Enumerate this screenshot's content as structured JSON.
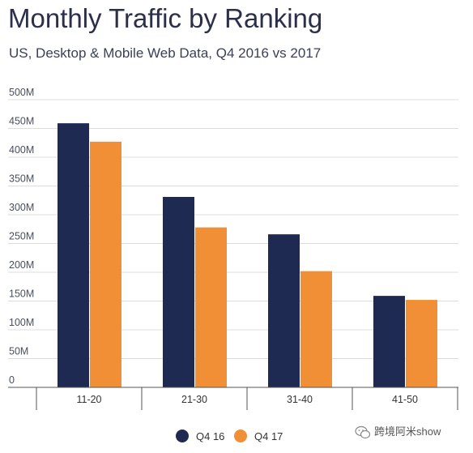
{
  "header": {
    "title": "Monthly Traffic by Ranking",
    "subtitle": "US, Desktop & Mobile Web Data, Q4 2016 vs 2017"
  },
  "chart_data": {
    "type": "bar",
    "title": "Monthly Traffic by Ranking",
    "subtitle": "US, Desktop & Mobile Web Data, Q4 2016 vs 2017",
    "categories": [
      "11-20",
      "21-30",
      "31-40",
      "41-50"
    ],
    "series": [
      {
        "name": "Q4 16",
        "color": "#1f2a52",
        "values": [
          459,
          331,
          266,
          159
        ]
      },
      {
        "name": "Q4 17",
        "color": "#f08f35",
        "values": [
          427,
          278,
          202,
          152
        ]
      }
    ],
    "yticks": [
      "0",
      "50M",
      "100M",
      "150M",
      "200M",
      "250M",
      "300M",
      "350M",
      "400M",
      "450M",
      "500M"
    ],
    "ylim": [
      0,
      500
    ],
    "xlabel": "",
    "ylabel": "",
    "grid": true,
    "legend_position": "bottom-center"
  },
  "watermark": {
    "text": "跨境阿米show"
  }
}
